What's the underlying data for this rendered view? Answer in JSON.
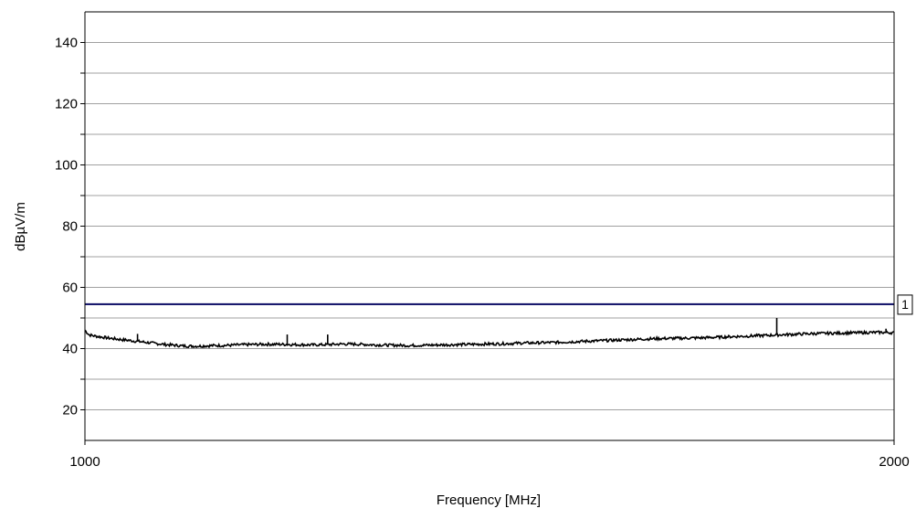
{
  "chart_data": {
    "type": "line",
    "title": "",
    "xlabel": "Frequency [MHz]",
    "ylabel": "dBµV/m",
    "xlim": [
      1000,
      2000
    ],
    "ylim": [
      10,
      150
    ],
    "x_tick_labels": [
      "1000",
      "2000"
    ],
    "x_ticks": [
      1000,
      2000
    ],
    "y_tick_labels": [
      "20",
      "40",
      "60",
      "80",
      "100",
      "120",
      "140"
    ],
    "y_ticks": [
      20,
      40,
      60,
      80,
      100,
      120,
      140
    ],
    "y_minor_ticks": [
      10,
      30,
      50,
      70,
      90,
      110,
      130,
      150
    ],
    "grid": "horizontal",
    "series": [
      {
        "color": "#000000",
        "x": [
          1000,
          1005,
          1010,
          1020,
          1030,
          1040,
          1050,
          1060,
          1070,
          1080,
          1090,
          1100,
          1110,
          1120,
          1130,
          1140,
          1150,
          1160,
          1170,
          1180,
          1190,
          1200,
          1220,
          1240,
          1260,
          1280,
          1300,
          1320,
          1340,
          1360,
          1380,
          1400,
          1420,
          1440,
          1460,
          1480,
          1500,
          1520,
          1540,
          1560,
          1580,
          1600,
          1620,
          1640,
          1660,
          1680,
          1700,
          1720,
          1740,
          1760,
          1780,
          1800,
          1820,
          1840,
          1860,
          1880,
          1900,
          1920,
          1940,
          1960,
          1980,
          2000
        ],
        "values": [
          46.0,
          44.5,
          44.2,
          43.8,
          43.4,
          43.1,
          42.8,
          42.5,
          42.2,
          41.9,
          41.6,
          41.3,
          41.1,
          40.9,
          40.8,
          40.8,
          40.9,
          41.0,
          41.0,
          41.1,
          41.2,
          41.3,
          41.4,
          41.4,
          41.3,
          41.2,
          41.3,
          41.5,
          41.4,
          41.2,
          41.1,
          41.0,
          41.1,
          41.2,
          41.3,
          41.4,
          41.5,
          41.6,
          41.8,
          41.9,
          42.0,
          42.2,
          42.4,
          42.6,
          42.8,
          43.0,
          43.2,
          43.3,
          43.4,
          43.5,
          43.7,
          43.9,
          44.1,
          44.3,
          44.5,
          44.7,
          44.9,
          45.0,
          45.1,
          45.2,
          45.3,
          45.2
        ]
      },
      {
        "color": "#1a1a6e",
        "x": [
          1000,
          2000
        ],
        "values": [
          54.5,
          54.5
        ]
      }
    ],
    "spikes": [
      {
        "x": 1065,
        "value": 44.8
      },
      {
        "x": 1250,
        "value": 44.6
      },
      {
        "x": 1300,
        "value": 44.6
      },
      {
        "x": 1855,
        "value": 50.0
      },
      {
        "x": 1990,
        "value": 46.5
      }
    ],
    "annotations": [
      {
        "text": "1",
        "y": 54.5
      }
    ]
  }
}
